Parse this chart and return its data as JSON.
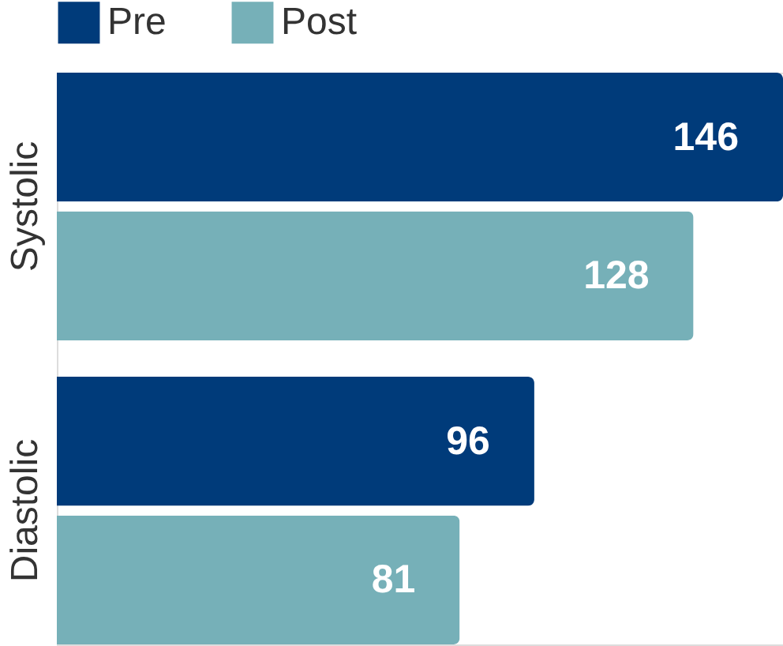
{
  "chart_data": {
    "type": "bar",
    "orientation": "horizontal",
    "categories": [
      "Systolic",
      "Diastolic"
    ],
    "series": [
      {
        "name": "Pre",
        "color": "#003b7a",
        "values": [
          146,
          96
        ]
      },
      {
        "name": "Post",
        "color": "#76b0b8",
        "values": [
          128,
          81
        ]
      }
    ],
    "data_labels": true,
    "legend": "top",
    "grid": false
  }
}
